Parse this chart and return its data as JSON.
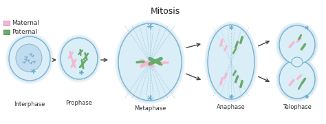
{
  "title": "Mitosis",
  "title_fontsize": 9,
  "background_color": "#ffffff",
  "legend_maternal_color": "#f5b8d0",
  "legend_paternal_color": "#6aaa6a",
  "legend_maternal_label": "Maternal",
  "legend_paternal_label": "Paternal",
  "stage_labels": [
    "Interphase",
    "Prophase",
    "Metaphase",
    "Anaphase",
    "Telophase"
  ],
  "cell_outer_color": "#cce4f2",
  "cell_inner_color": "#daeef8",
  "cell_membrane_color": "#7ab0cc",
  "arrow_color": "#444444",
  "spindle_color": "#a0c8dc",
  "chromosome_pink": "#f5b8d0",
  "chromosome_green": "#6aaa6a",
  "aster_color": "#6ab0cc",
  "label_fontsize": 6.0,
  "legend_fontsize": 6.5
}
